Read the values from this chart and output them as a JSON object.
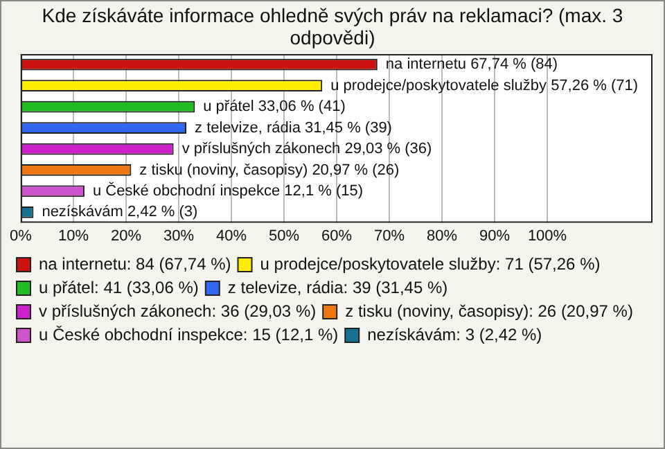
{
  "chart_data": {
    "type": "bar",
    "orientation": "horizontal",
    "stacked": true,
    "title": "Kde získáváte informace ohledně svých práv na reklamaci? (max. 3 odpovědi)",
    "categories": [
      null,
      null,
      null,
      null,
      null,
      null,
      null,
      null
    ],
    "series": [
      {
        "name": "na internetu: 84 (67,74 %)",
        "color": "#cc1111",
        "values": [
          67.74,
          null,
          null,
          null,
          null,
          null,
          null,
          null
        ],
        "value_labels": [
          "na internetu 67,74 % (84)",
          null,
          null,
          null,
          null,
          null,
          null,
          null
        ]
      },
      {
        "name": "u prodejce/poskytovatele služby: 71 (57,26 %)",
        "color": "#ffee00",
        "values": [
          null,
          57.26,
          null,
          null,
          null,
          null,
          null,
          null
        ],
        "value_labels": [
          null,
          "u prodejce/poskytovatele služby 57,26 % (71)",
          null,
          null,
          null,
          null,
          null,
          null
        ]
      },
      {
        "name": "u přátel: 41 (33,06 %)",
        "color": "#22bb22",
        "values": [
          null,
          null,
          33.06,
          null,
          null,
          null,
          null,
          null
        ],
        "value_labels": [
          null,
          null,
          "u přátel 33,06 % (41)",
          null,
          null,
          null,
          null,
          null
        ]
      },
      {
        "name": "z televize, rádia: 39 (31,45 %)",
        "color": "#3366ee",
        "values": [
          null,
          null,
          null,
          31.45,
          null,
          null,
          null,
          null
        ],
        "value_labels": [
          null,
          null,
          null,
          "z televize, rádia 31,45 % (39)",
          null,
          null,
          null,
          null
        ]
      },
      {
        "name": "v příslušných zákonech: 36 (29,03 %)",
        "color": "#cc22cc",
        "values": [
          null,
          null,
          null,
          null,
          29.03,
          null,
          null,
          null
        ],
        "value_labels": [
          null,
          null,
          null,
          null,
          "v příslušných zákonech 29,03 % (36)",
          null,
          null,
          null
        ]
      },
      {
        "name": "z tisku (noviny, časopisy): 26 (20,97 %)",
        "color": "#ee7711",
        "values": [
          null,
          null,
          null,
          null,
          null,
          20.97,
          null,
          null
        ],
        "value_labels": [
          null,
          null,
          null,
          null,
          null,
          "z tisku (noviny, časopisy) 20,97 % (26)",
          null,
          null
        ]
      },
      {
        "name": "u České obchodní inspekce: 15 (12,1 %)",
        "color": "#cc55cc",
        "values": [
          null,
          null,
          null,
          null,
          null,
          null,
          12.1,
          null
        ],
        "value_labels": [
          null,
          null,
          null,
          null,
          null,
          null,
          "u České obchodní inspekce 12,1 % (15)",
          null
        ]
      },
      {
        "name": "nezískávám: 3 (2,42 %)",
        "color": "#1a7090",
        "values": [
          null,
          null,
          null,
          null,
          null,
          null,
          null,
          2.42
        ],
        "value_labels": [
          null,
          null,
          null,
          null,
          null,
          null,
          null,
          "nezískávám 2,42 % (3)"
        ]
      }
    ],
    "xlim": [
      0,
      120
    ],
    "xticks": [
      {
        "value": 0,
        "label": "0%"
      },
      {
        "value": 10,
        "label": "10%"
      },
      {
        "value": 20,
        "label": "20%"
      },
      {
        "value": 30,
        "label": "30%"
      },
      {
        "value": 40,
        "label": "40%"
      },
      {
        "value": 50,
        "label": "50%"
      },
      {
        "value": 60,
        "label": "60%"
      },
      {
        "value": 70,
        "label": "70%"
      },
      {
        "value": 80,
        "label": "80%"
      },
      {
        "value": 90,
        "label": "90%"
      },
      {
        "value": 100,
        "label": "100%"
      }
    ],
    "tick_labels": "x",
    "grid": "x",
    "legend": "bottom"
  }
}
